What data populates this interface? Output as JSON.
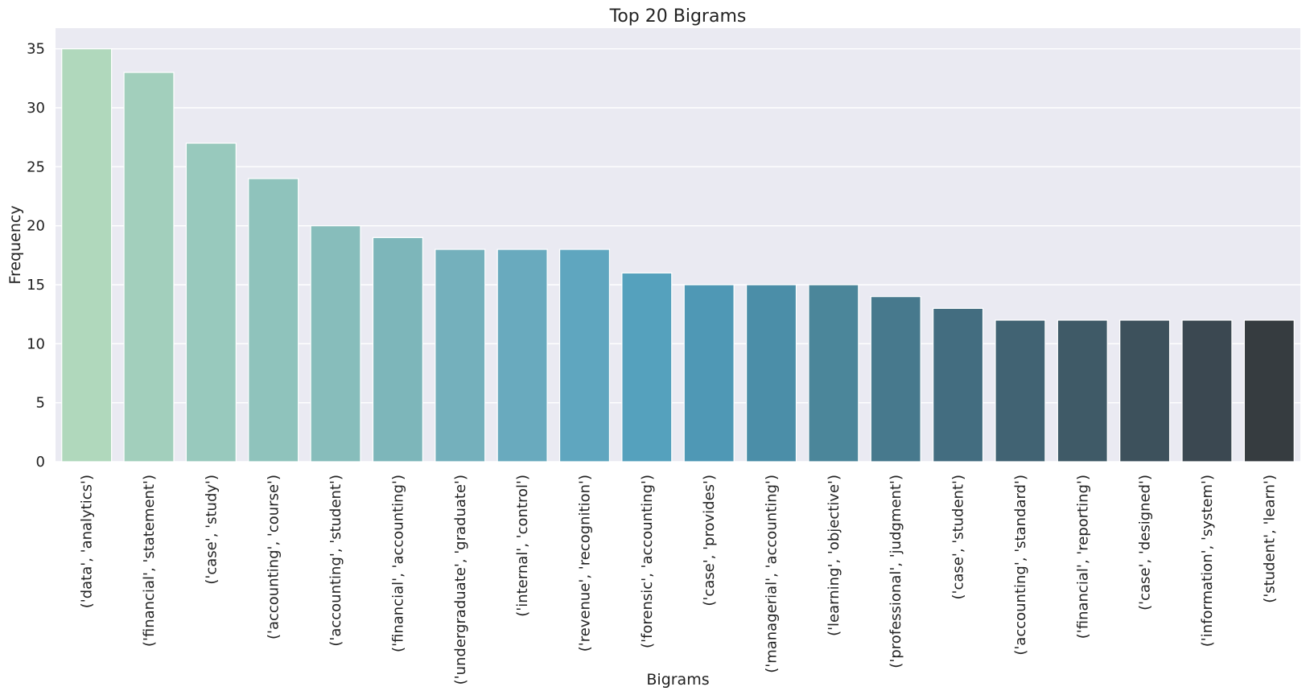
{
  "chart_data": {
    "type": "bar",
    "title": "Top 20 Bigrams",
    "xlabel": "Bigrams",
    "ylabel": "Frequency",
    "ylim": [
      0,
      36.75
    ],
    "yticks": [
      0,
      5,
      10,
      15,
      20,
      25,
      30,
      35
    ],
    "grid": true,
    "categories": [
      "('data', 'analytics')",
      "('financial', 'statement')",
      "('case', 'study')",
      "('accounting', 'course')",
      "('accounting', 'student')",
      "('financial', 'accounting')",
      "('undergraduate', 'graduate')",
      "('internal', 'control')",
      "('revenue', 'recognition')",
      "('forensic', 'accounting')",
      "('case', 'provides')",
      "('managerial', 'accounting')",
      "('learning', 'objective')",
      "('professional', 'judgment')",
      "('case', 'student')",
      "('accounting', 'standard')",
      "('financial', 'reporting')",
      "('case', 'designed')",
      "('information', 'system')",
      "('student', 'learn')"
    ],
    "values": [
      35,
      33,
      27,
      24,
      20,
      19,
      18,
      18,
      18,
      16,
      15,
      15,
      15,
      14,
      13,
      12,
      12,
      12,
      12,
      12
    ],
    "colors": [
      "#b0d8bc",
      "#a2cfbc",
      "#98c9bd",
      "#8fc3bc",
      "#87bdbb",
      "#7db6ba",
      "#74b0bc",
      "#69aabe",
      "#5fa6bf",
      "#55a1bd",
      "#4f98b5",
      "#4b8ea8",
      "#4b869a",
      "#47798d",
      "#436d80",
      "#416373",
      "#3f5a67",
      "#3d515c",
      "#3b4851",
      "#363c40"
    ],
    "background": "#eaeaf2",
    "grid_color": "#ffffff"
  }
}
